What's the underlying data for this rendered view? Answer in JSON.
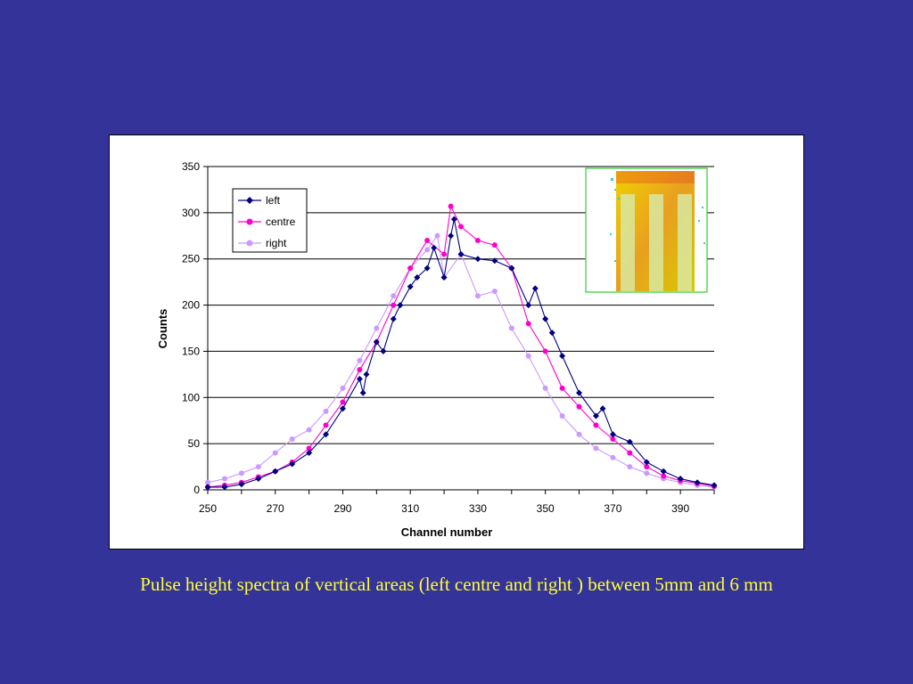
{
  "caption": "Pulse height spectra of vertical areas (left centre and right ) between 5mm and 6 mm",
  "chart_data": {
    "type": "line",
    "xlabel": "Channel number",
    "ylabel": "Counts",
    "xlim": [
      250,
      400
    ],
    "ylim": [
      0,
      350
    ],
    "xticks": [
      250,
      270,
      290,
      310,
      330,
      350,
      370,
      390
    ],
    "yticks": [
      0,
      50,
      100,
      150,
      200,
      250,
      300,
      350
    ],
    "grid": "horizontal",
    "legend_position": "top-left",
    "inset_image": "detector-map-thumbnail",
    "series": [
      {
        "name": "left",
        "color": "#000080",
        "marker": "diamond",
        "x": [
          250,
          255,
          260,
          265,
          270,
          275,
          280,
          285,
          290,
          295,
          296,
          297,
          300,
          302,
          305,
          307,
          310,
          312,
          315,
          317,
          320,
          322,
          323,
          325,
          330,
          335,
          340,
          345,
          347,
          350,
          352,
          355,
          360,
          365,
          367,
          370,
          375,
          380,
          385,
          390,
          395,
          400
        ],
        "y": [
          3,
          3,
          6,
          12,
          20,
          28,
          40,
          60,
          88,
          120,
          105,
          125,
          160,
          150,
          185,
          200,
          220,
          230,
          240,
          262,
          230,
          275,
          293,
          255,
          250,
          248,
          240,
          200,
          218,
          185,
          170,
          145,
          105,
          80,
          88,
          60,
          52,
          30,
          20,
          12,
          8,
          5
        ]
      },
      {
        "name": "centre",
        "color": "#ff00cc",
        "marker": "circle",
        "x": [
          250,
          255,
          260,
          265,
          270,
          275,
          280,
          285,
          290,
          295,
          300,
          305,
          310,
          315,
          320,
          322,
          325,
          330,
          335,
          340,
          345,
          350,
          355,
          360,
          365,
          370,
          375,
          380,
          385,
          390,
          395,
          400
        ],
        "y": [
          3,
          5,
          8,
          14,
          20,
          30,
          45,
          70,
          95,
          130,
          160,
          200,
          240,
          270,
          255,
          307,
          285,
          270,
          265,
          240,
          180,
          150,
          110,
          90,
          70,
          55,
          40,
          25,
          15,
          10,
          7,
          4
        ]
      },
      {
        "name": "right",
        "color": "#cc99ff",
        "marker": "circle",
        "x": [
          250,
          255,
          260,
          265,
          270,
          275,
          280,
          285,
          290,
          295,
          300,
          305,
          310,
          315,
          318,
          320,
          325,
          330,
          335,
          340,
          345,
          350,
          355,
          360,
          365,
          370,
          375,
          380,
          385,
          390,
          395,
          400
        ],
        "y": [
          8,
          12,
          18,
          25,
          40,
          55,
          65,
          85,
          110,
          140,
          175,
          210,
          240,
          260,
          275,
          230,
          255,
          210,
          215,
          175,
          145,
          110,
          80,
          60,
          45,
          35,
          25,
          18,
          12,
          8,
          5,
          3
        ]
      }
    ]
  }
}
